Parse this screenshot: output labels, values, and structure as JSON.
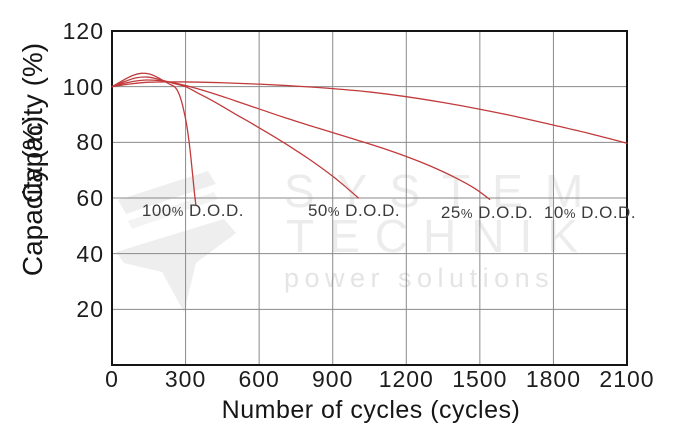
{
  "figure": {
    "y_axis_label": "Capacity (%)",
    "x_axis_label": "Number of cycles (cycles)"
  },
  "watermark": {
    "line1": "SYSTEM",
    "line2": "TECHNIK",
    "line3": "power solutions"
  },
  "colors": {
    "curve": "#c13a3c",
    "grid": "#8a8a8a",
    "border": "#151515",
    "tick_text": "#1d1d1d",
    "series_label_text": "#3b3b3b",
    "watermark": "#ececec"
  },
  "chart_data": {
    "type": "line",
    "title": "",
    "xlabel": "Number of cycles (cycles)",
    "ylabel": "Capacity (%)",
    "xlim": [
      0,
      2100
    ],
    "ylim": [
      0,
      120
    ],
    "grid": true,
    "legend_position": "inline-labels",
    "x_ticks": [
      0,
      300,
      600,
      900,
      1200,
      1500,
      1800,
      2100
    ],
    "y_ticks": [
      120,
      100,
      80,
      60,
      40,
      20
    ],
    "series": [
      {
        "name": "100-percent-dod",
        "label": "100% D.O.D.",
        "label_anchor": [
          330,
          55.3
        ],
        "points": [
          [
            0,
            100
          ],
          [
            30,
            101.5
          ],
          [
            60,
            103
          ],
          [
            90,
            104.2
          ],
          [
            120,
            104.8
          ],
          [
            150,
            104.6
          ],
          [
            180,
            103.6
          ],
          [
            210,
            102.1
          ],
          [
            235,
            100.9
          ],
          [
            257,
            99.8
          ],
          [
            275,
            97
          ],
          [
            290,
            92.5
          ],
          [
            305,
            86
          ],
          [
            318,
            77.5
          ],
          [
            328,
            69
          ],
          [
            336,
            62
          ],
          [
            342,
            57.5
          ]
        ]
      },
      {
        "name": "50-percent-dod",
        "label": "50% D.O.D.",
        "label_anchor": [
          987,
          55.3
        ],
        "points": [
          [
            0,
            100
          ],
          [
            50,
            101.8
          ],
          [
            100,
            103.2
          ],
          [
            150,
            103.4
          ],
          [
            200,
            102.4
          ],
          [
            250,
            101.2
          ],
          [
            300,
            100
          ],
          [
            350,
            97.7
          ],
          [
            400,
            95.4
          ],
          [
            450,
            92.9
          ],
          [
            500,
            90.3
          ],
          [
            550,
            87.8
          ],
          [
            600,
            85.2
          ],
          [
            650,
            82.6
          ],
          [
            700,
            79.9
          ],
          [
            750,
            77.1
          ],
          [
            800,
            74.2
          ],
          [
            850,
            71.1
          ],
          [
            900,
            67.8
          ],
          [
            950,
            64.2
          ],
          [
            1005,
            60
          ]
        ]
      },
      {
        "name": "25-percent-dod",
        "label": "25% D.O.D.",
        "label_anchor": [
          1529,
          54.6
        ],
        "points": [
          [
            0,
            100
          ],
          [
            70,
            101.6
          ],
          [
            140,
            102.4
          ],
          [
            220,
            101.9
          ],
          [
            300,
            100.4
          ],
          [
            400,
            97.9
          ],
          [
            500,
            95
          ],
          [
            600,
            92
          ],
          [
            700,
            89
          ],
          [
            800,
            86.2
          ],
          [
            900,
            83.5
          ],
          [
            1000,
            80.8
          ],
          [
            1100,
            78
          ],
          [
            1200,
            74.9
          ],
          [
            1300,
            71.4
          ],
          [
            1400,
            67.3
          ],
          [
            1480,
            63.4
          ],
          [
            1540,
            59.5
          ]
        ]
      },
      {
        "name": "10-percent-dod",
        "label": "10% D.O.D.",
        "label_anchor": [
          1949,
          54.6
        ],
        "points": [
          [
            0,
            100
          ],
          [
            60,
            100.8
          ],
          [
            150,
            101.6
          ],
          [
            300,
            101.7
          ],
          [
            450,
            101.4
          ],
          [
            600,
            100.9
          ],
          [
            750,
            100.2
          ],
          [
            900,
            99.3
          ],
          [
            1050,
            98.1
          ],
          [
            1200,
            96.4
          ],
          [
            1350,
            94.3
          ],
          [
            1500,
            91.9
          ],
          [
            1650,
            89.2
          ],
          [
            1800,
            86.2
          ],
          [
            1950,
            83.1
          ],
          [
            2100,
            79.7
          ]
        ]
      }
    ]
  }
}
